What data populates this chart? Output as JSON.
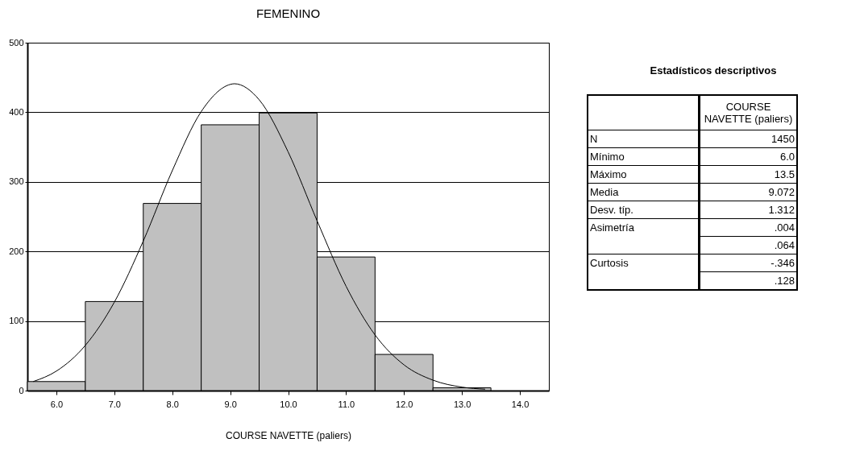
{
  "chart_data": [
    {
      "type": "histogram",
      "title": "FEMENINO",
      "xlabel": "COURSE NAVETTE (paliers)",
      "bins": [
        5.5,
        6.5,
        7.5,
        8.5,
        9.5,
        10.5,
        11.5,
        12.5,
        13.5
      ],
      "values": [
        13,
        128,
        269,
        382,
        399,
        192,
        52,
        4
      ],
      "color": "#c0c0c0",
      "series": [
        {
          "type": "line",
          "color": "#000000",
          "x": [
            5.6,
            6.0,
            6.5,
            7.0,
            7.5,
            8.0,
            8.5,
            9.0,
            9.072,
            9.5,
            10.0,
            10.5,
            11.0,
            11.5,
            12.0,
            12.5,
            13.0,
            13.4
          ],
          "values": [
            13,
            28,
            65,
            127,
            215,
            316,
            401,
            440,
            441,
            418,
            343,
            244,
            150,
            80,
            37,
            15,
            5,
            2
          ]
        }
      ],
      "xlim": [
        5.5,
        14.5
      ],
      "xticks": [
        {
          "value": 6,
          "label": "6.0"
        },
        {
          "value": 7,
          "label": "7.0"
        },
        {
          "value": 8,
          "label": "8.0"
        },
        {
          "value": 9,
          "label": "9.0"
        },
        {
          "value": 10,
          "label": "10.0"
        },
        {
          "value": 11,
          "label": "11.0"
        },
        {
          "value": 12,
          "label": "12.0"
        },
        {
          "value": 13,
          "label": "13.0"
        },
        {
          "value": 14,
          "label": "14.0"
        }
      ],
      "ylim": [
        0,
        500
      ],
      "yticks": [
        0,
        100,
        200,
        300,
        400,
        500
      ],
      "grid": "y"
    },
    {
      "type": "other",
      "title": "Estadísticos descriptivos",
      "y_categories": [
        "N",
        "Mínimo",
        "Máximo",
        "Media",
        "Desv. típ.",
        "Asimetría",
        null,
        "Curtosis",
        null
      ],
      "annotations": [
        "COURSE NAVETTE (paliers)",
        "1450",
        "6.0",
        "13.5",
        "9.072",
        "1.312",
        ".004",
        ".064",
        "-.346",
        ".128"
      ]
    }
  ]
}
